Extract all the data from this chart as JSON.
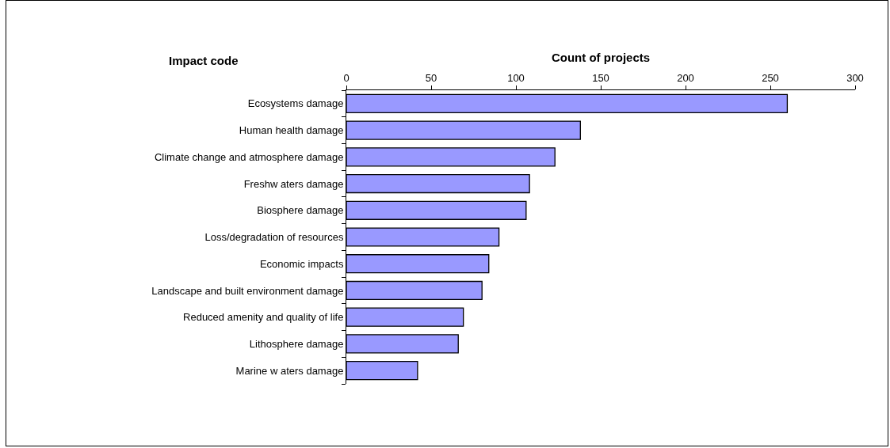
{
  "chart_data": {
    "type": "bar",
    "orientation": "horizontal",
    "xlabel": "Count of projects",
    "ylabel": "Impact code",
    "categories": [
      "Ecosystems damage",
      "Human health damage",
      "Climate change and atmosphere damage",
      "Freshw aters damage",
      "Biosphere damage",
      "Loss/degradation of resources",
      "Economic impacts",
      "Landscape and built environment damage",
      "Reduced amenity and quality of life",
      "Lithosphere damage",
      "Marine w aters damage"
    ],
    "values": [
      260,
      138,
      123,
      108,
      106,
      90,
      84,
      80,
      69,
      66,
      42
    ],
    "color": "#9999ff",
    "xlim": [
      0,
      300
    ],
    "xticks": [
      0,
      50,
      100,
      150,
      200,
      250,
      300
    ],
    "grid": false,
    "legend": false
  }
}
